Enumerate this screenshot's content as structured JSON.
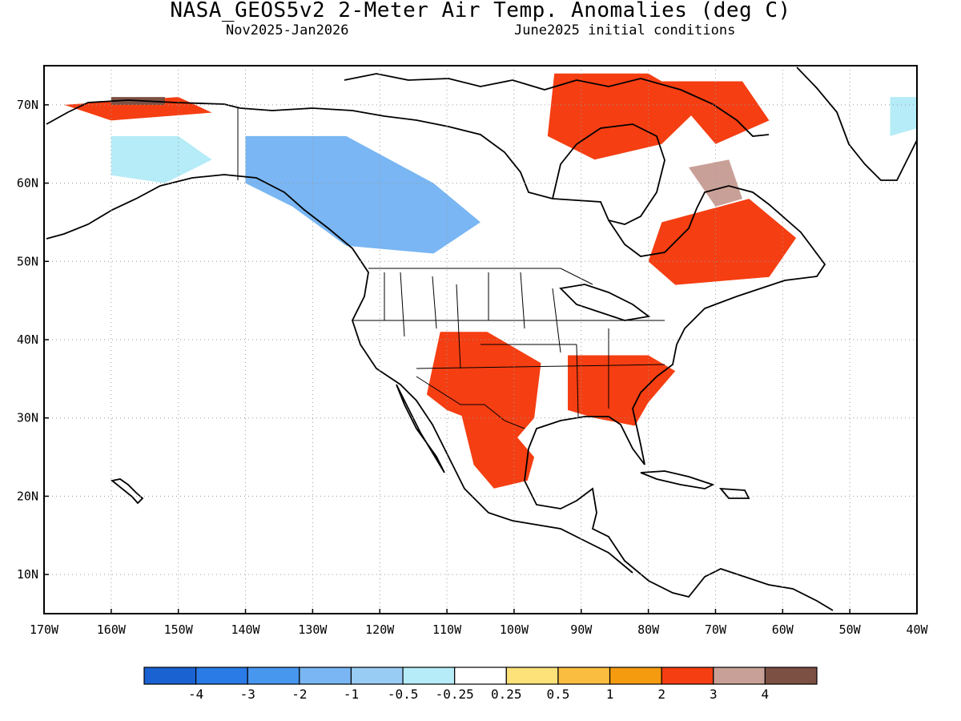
{
  "title": "NASA_GEOS5v2 2-Meter Air Temp. Anomalies (deg C)",
  "subtitle_left": "Nov2025-Jan2026",
  "subtitle_right": "June2025 initial conditions",
  "map": {
    "lon_range": [
      -170,
      -40
    ],
    "lat_range": [
      5,
      75
    ],
    "lon_ticks": [
      {
        "value": -170,
        "label": "170W"
      },
      {
        "value": -160,
        "label": "160W"
      },
      {
        "value": -150,
        "label": "150W"
      },
      {
        "value": -140,
        "label": "140W"
      },
      {
        "value": -130,
        "label": "130W"
      },
      {
        "value": -120,
        "label": "120W"
      },
      {
        "value": -110,
        "label": "110W"
      },
      {
        "value": -100,
        "label": "100W"
      },
      {
        "value": -90,
        "label": "90W"
      },
      {
        "value": -80,
        "label": "80W"
      },
      {
        "value": -70,
        "label": "70W"
      },
      {
        "value": -60,
        "label": "60W"
      },
      {
        "value": -50,
        "label": "50W"
      },
      {
        "value": -40,
        "label": "40W"
      }
    ],
    "lat_ticks": [
      {
        "value": 10,
        "label": "10N"
      },
      {
        "value": 20,
        "label": "20N"
      },
      {
        "value": 30,
        "label": "30N"
      },
      {
        "value": 40,
        "label": "40N"
      },
      {
        "value": 50,
        "label": "50N"
      },
      {
        "value": 60,
        "label": "60N"
      },
      {
        "value": 70,
        "label": "70N"
      }
    ],
    "grid": "dotted"
  },
  "colorbar": {
    "colors": [
      "#1a62d2",
      "#2a7be6",
      "#4797ef",
      "#79b6f3",
      "#99ccf5",
      "#b5ecf7",
      "#ffffff",
      "#fde27a",
      "#fbbd3f",
      "#f59b10",
      "#f53e12",
      "#c9a097",
      "#7c5043"
    ],
    "labels": [
      "-4",
      "-3",
      "-2",
      "-1",
      "-0.5",
      "-0.25",
      "0.25",
      "0.5",
      "1",
      "2",
      "3",
      "4"
    ]
  },
  "regions": [
    {
      "name": "us-southeast-warm",
      "color": "#f53e12",
      "polygon": [
        [
          -92,
          38
        ],
        [
          -80,
          38
        ],
        [
          -76,
          36
        ],
        [
          -80,
          32
        ],
        [
          -82,
          29
        ],
        [
          -88,
          30
        ],
        [
          -92,
          31
        ]
      ]
    },
    {
      "name": "us-southwest-warm",
      "color": "#f53e12",
      "polygon": [
        [
          -111,
          41
        ],
        [
          -104,
          41
        ],
        [
          -96,
          37
        ],
        [
          -97,
          30
        ],
        [
          -100,
          27
        ],
        [
          -104,
          29
        ],
        [
          -110,
          31
        ],
        [
          -113,
          33
        ]
      ]
    },
    {
      "name": "mexico-warm",
      "color": "#f53e12",
      "polygon": [
        [
          -108,
          31
        ],
        [
          -100,
          28
        ],
        [
          -97,
          25
        ],
        [
          -98,
          22
        ],
        [
          -103,
          21
        ],
        [
          -106,
          24
        ]
      ]
    },
    {
      "name": "labrador-warm",
      "color": "#f53e12",
      "polygon": [
        [
          -78,
          55
        ],
        [
          -65,
          58
        ],
        [
          -58,
          53
        ],
        [
          -62,
          48
        ],
        [
          -76,
          47
        ],
        [
          -80,
          50
        ]
      ]
    },
    {
      "name": "arctic-archipelago-warm",
      "color": "#f53e12",
      "polygon": [
        [
          -94,
          74
        ],
        [
          -80,
          74
        ],
        [
          -72,
          70
        ],
        [
          -78,
          65
        ],
        [
          -88,
          63
        ],
        [
          -95,
          66
        ]
      ]
    },
    {
      "name": "baffin-warm",
      "color": "#f53e12",
      "polygon": [
        [
          -78,
          73
        ],
        [
          -66,
          73
        ],
        [
          -62,
          68
        ],
        [
          -70,
          65
        ]
      ]
    },
    {
      "name": "alaska-north-warm",
      "color": "#f53e12",
      "polygon": [
        [
          -167,
          70
        ],
        [
          -150,
          71
        ],
        [
          -145,
          69
        ],
        [
          -160,
          68
        ]
      ]
    },
    {
      "name": "baffin-hot",
      "color": "#c9a097",
      "polygon": [
        [
          -74,
          62
        ],
        [
          -68,
          63
        ],
        [
          -66,
          58
        ],
        [
          -70,
          57
        ]
      ]
    },
    {
      "name": "alaska-hot",
      "color": "#7c5043",
      "polygon": [
        [
          -160,
          71
        ],
        [
          -152,
          71
        ],
        [
          -152,
          70
        ],
        [
          -160,
          70
        ]
      ]
    },
    {
      "name": "western-canada-cool",
      "color": "#79b6f3",
      "polygon": [
        [
          -140,
          66
        ],
        [
          -125,
          66
        ],
        [
          -112,
          60
        ],
        [
          -105,
          55
        ],
        [
          -112,
          51
        ],
        [
          -125,
          52
        ],
        [
          -133,
          57
        ],
        [
          -140,
          60
        ]
      ]
    },
    {
      "name": "alaska-cool",
      "color": "#b5ecf7",
      "polygon": [
        [
          -160,
          66
        ],
        [
          -150,
          66
        ],
        [
          -145,
          63
        ],
        [
          -152,
          60
        ],
        [
          -160,
          61
        ]
      ]
    },
    {
      "name": "greenland-cool",
      "color": "#b5ecf7",
      "polygon": [
        [
          -44,
          71
        ],
        [
          -40,
          71
        ],
        [
          -40,
          67
        ],
        [
          -44,
          66
        ]
      ]
    }
  ]
}
